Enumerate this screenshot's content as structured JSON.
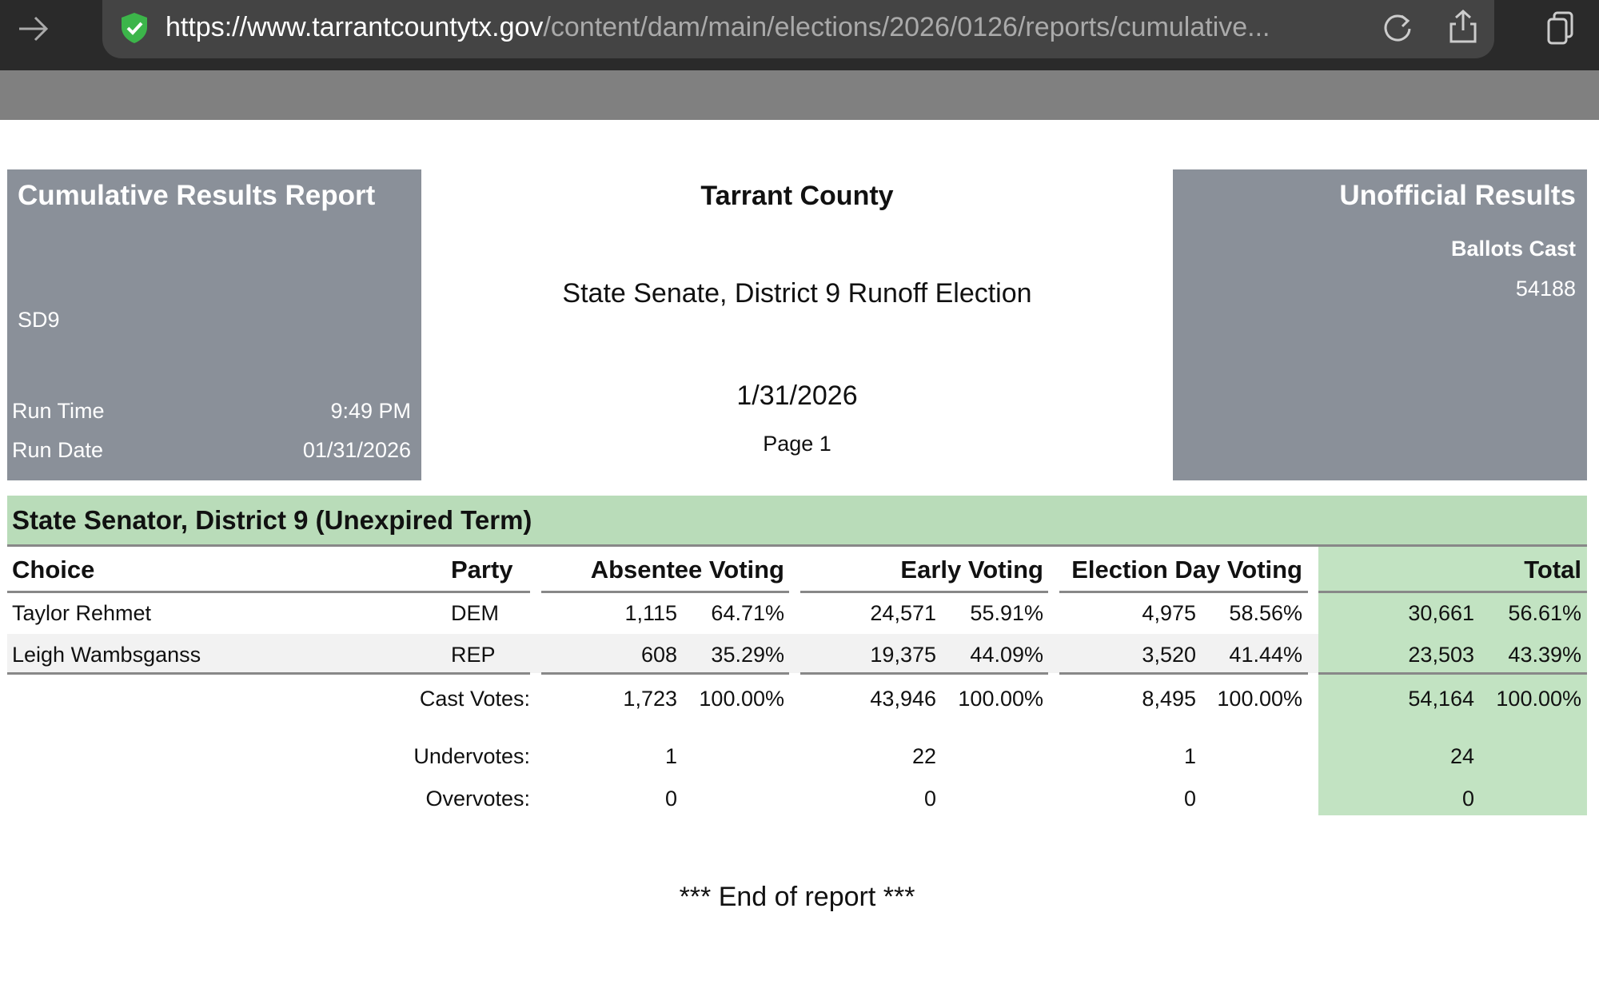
{
  "browser": {
    "url_host": "https://www.tarrantcountytx.gov",
    "url_path": "/content/dam/main/elections/2026/0126/reports/cumulative..."
  },
  "report": {
    "title": "Cumulative Results Report",
    "code": "SD9",
    "run_time_label": "Run Time",
    "run_time": "9:49 PM",
    "run_date_label": "Run Date",
    "run_date": "01/31/2026",
    "county": "Tarrant County",
    "election": "State Senate, District 9 Runoff Election",
    "date": "1/31/2026",
    "page": "Page 1",
    "status": "Unofficial Results",
    "ballots_cast_label": "Ballots Cast",
    "ballots_cast": "54188"
  },
  "contest": {
    "title": "State Senator, District 9 (Unexpired Term)",
    "headers": [
      "Choice",
      "Party",
      "Absentee Voting",
      "Early Voting",
      "Election Day Voting",
      "Total"
    ],
    "candidates": [
      {
        "name": "Taylor Rehmet",
        "party": "DEM",
        "absentee": [
          "1,115",
          "64.71%"
        ],
        "early": [
          "24,571",
          "55.91%"
        ],
        "election_day": [
          "4,975",
          "58.56%"
        ],
        "total": [
          "30,661",
          "56.61%"
        ]
      },
      {
        "name": "Leigh Wambsganss",
        "party": "REP",
        "absentee": [
          "608",
          "35.29%"
        ],
        "early": [
          "19,375",
          "44.09%"
        ],
        "election_day": [
          "3,520",
          "41.44%"
        ],
        "total": [
          "23,503",
          "43.39%"
        ]
      }
    ],
    "summary": [
      {
        "label": "Cast Votes:",
        "absentee": [
          "1,723",
          "100.00%"
        ],
        "early": [
          "43,946",
          "100.00%"
        ],
        "election_day": [
          "8,495",
          "100.00%"
        ],
        "total": [
          "54,164",
          "100.00%"
        ]
      },
      {
        "label": "Undervotes:",
        "absentee": [
          "1"
        ],
        "early": [
          "22"
        ],
        "election_day": [
          "1"
        ],
        "total": [
          "24"
        ]
      },
      {
        "label": "Overvotes:",
        "absentee": [
          "0"
        ],
        "early": [
          "0"
        ],
        "election_day": [
          "0"
        ],
        "total": [
          "0"
        ]
      }
    ]
  },
  "footer": "*** End of report ***"
}
